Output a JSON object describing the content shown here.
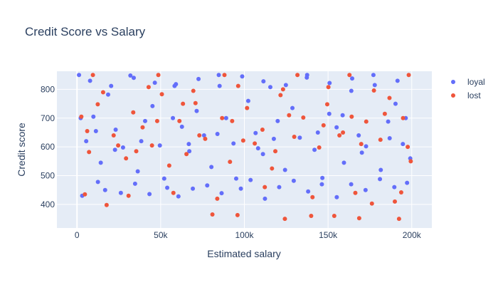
{
  "chart_data": {
    "type": "scatter",
    "title": "Credit Score vs Salary",
    "xlabel": "Estimated salary",
    "ylabel": "Credit score",
    "xlim": [
      -12000,
      212000
    ],
    "ylim": [
      318,
      863
    ],
    "xticks": [
      0,
      50000,
      100000,
      150000,
      200000
    ],
    "xtick_labels": [
      "0",
      "50k",
      "100k",
      "150k",
      "200k"
    ],
    "yticks": [
      400,
      500,
      600,
      700,
      800
    ],
    "ytick_labels": [
      "400",
      "500",
      "600",
      "700",
      "800"
    ],
    "grid": true,
    "legend_position": "top-right",
    "series": [
      {
        "name": "loyal",
        "color": "#636efa",
        "points": [
          [
            1200,
            850
          ],
          [
            5500,
            620
          ],
          [
            9800,
            705
          ],
          [
            14200,
            545
          ],
          [
            18600,
            782
          ],
          [
            23100,
            660
          ],
          [
            27500,
            598
          ],
          [
            31900,
            848
          ],
          [
            36300,
            515
          ],
          [
            40700,
            690
          ],
          [
            45100,
            742
          ],
          [
            49500,
            605
          ],
          [
            53900,
            458
          ],
          [
            58300,
            812
          ],
          [
            62700,
            670
          ],
          [
            67100,
            585
          ],
          [
            71500,
            725
          ],
          [
            75900,
            640
          ],
          [
            80300,
            530
          ],
          [
            84700,
            850
          ],
          [
            89100,
            700
          ],
          [
            93500,
            612
          ],
          [
            97900,
            455
          ],
          [
            102300,
            760
          ],
          [
            106700,
            648
          ],
          [
            111100,
            575
          ],
          [
            115500,
            808
          ],
          [
            119900,
            690
          ],
          [
            124300,
            520
          ],
          [
            128700,
            735
          ],
          [
            133100,
            632
          ],
          [
            137500,
            850
          ],
          [
            141900,
            590
          ],
          [
            146300,
            470
          ],
          [
            150700,
            715
          ],
          [
            155100,
            668
          ],
          [
            159500,
            545
          ],
          [
            163900,
            795
          ],
          [
            168300,
            640
          ],
          [
            172700,
            602
          ],
          [
            177100,
            850
          ],
          [
            181500,
            520
          ],
          [
            185900,
            688
          ],
          [
            190300,
            750
          ],
          [
            194700,
            610
          ],
          [
            199100,
            560
          ],
          [
            3100,
            430
          ],
          [
            12500,
            478
          ],
          [
            16800,
            450
          ],
          [
            26200,
            440
          ],
          [
            34700,
            472
          ],
          [
            43300,
            436
          ],
          [
            52100,
            490
          ],
          [
            60600,
            428
          ],
          [
            69200,
            455
          ],
          [
            77800,
            466
          ],
          [
            86400,
            439
          ],
          [
            95100,
            490
          ],
          [
            103700,
            485
          ],
          [
            112300,
            420
          ],
          [
            120800,
            460
          ],
          [
            129500,
            482
          ],
          [
            138100,
            445
          ],
          [
            146600,
            492
          ],
          [
            155200,
            425
          ],
          [
            163800,
            470
          ],
          [
            172400,
            450
          ],
          [
            181000,
            488
          ],
          [
            189600,
            460
          ],
          [
            197200,
            475
          ],
          [
            7800,
            830
          ],
          [
            20400,
            812
          ],
          [
            33900,
            840
          ],
          [
            46500,
            823
          ],
          [
            59100,
            818
          ],
          [
            72600,
            836
          ],
          [
            85200,
            812
          ],
          [
            98700,
            845
          ],
          [
            111400,
            828
          ],
          [
            124800,
            815
          ],
          [
            137300,
            841
          ],
          [
            150900,
            822
          ],
          [
            164400,
            838
          ],
          [
            177900,
            815
          ],
          [
            191500,
            830
          ],
          [
            2200,
            700
          ],
          [
            11300,
            655
          ],
          [
            22700,
            590
          ],
          [
            38400,
            620
          ],
          [
            57300,
            700
          ],
          [
            66800,
            610
          ],
          [
            83900,
            645
          ],
          [
            108200,
            595
          ],
          [
            117600,
            628
          ],
          [
            143900,
            650
          ],
          [
            158700,
            710
          ],
          [
            170200,
            580
          ],
          [
            186800,
            630
          ],
          [
            196400,
            700
          ]
        ]
      },
      {
        "name": "lost",
        "color": "#ef553b",
        "points": [
          [
            2600,
            705
          ],
          [
            7200,
            582
          ],
          [
            12400,
            748
          ],
          [
            17700,
            398
          ],
          [
            21900,
            640
          ],
          [
            29300,
            560
          ],
          [
            33600,
            720
          ],
          [
            39200,
            668
          ],
          [
            44800,
            605
          ],
          [
            50700,
            783
          ],
          [
            55100,
            535
          ],
          [
            61200,
            690
          ],
          [
            65400,
            575
          ],
          [
            70800,
            752
          ],
          [
            76600,
            628
          ],
          [
            80900,
            365
          ],
          [
            86700,
            700
          ],
          [
            91400,
            548
          ],
          [
            95900,
            363
          ],
          [
            101600,
            735
          ],
          [
            106200,
            612
          ],
          [
            110800,
            660
          ],
          [
            116500,
            525
          ],
          [
            121600,
            780
          ],
          [
            124200,
            350
          ],
          [
            129800,
            635
          ],
          [
            135200,
            702
          ],
          [
            139900,
            360
          ],
          [
            144700,
            598
          ],
          [
            149500,
            748
          ],
          [
            153700,
            360
          ],
          [
            158900,
            650
          ],
          [
            164100,
            705
          ],
          [
            168600,
            352
          ],
          [
            172800,
            688
          ],
          [
            176200,
            403
          ],
          [
            181300,
            625
          ],
          [
            186700,
            770
          ],
          [
            189900,
            410
          ],
          [
            192400,
            350
          ],
          [
            197600,
            600
          ],
          [
            4700,
            435
          ],
          [
            30800,
            430
          ],
          [
            57600,
            440
          ],
          [
            83800,
            420
          ],
          [
            112200,
            460
          ],
          [
            140700,
            425
          ],
          [
            166300,
            440
          ],
          [
            193700,
            442
          ],
          [
            15600,
            790
          ],
          [
            42800,
            808
          ],
          [
            69500,
            795
          ],
          [
            96300,
            812
          ],
          [
            123100,
            800
          ],
          [
            150200,
            808
          ],
          [
            177400,
            796
          ],
          [
            9500,
            850
          ],
          [
            48600,
            850
          ],
          [
            88100,
            850
          ],
          [
            131700,
            850
          ],
          [
            162800,
            850
          ],
          [
            198200,
            850
          ],
          [
            6100,
            655
          ],
          [
            24600,
            605
          ],
          [
            47900,
            690
          ],
          [
            73100,
            640
          ],
          [
            99300,
            622
          ],
          [
            126700,
            710
          ],
          [
            156800,
            640
          ],
          [
            183900,
            715
          ],
          [
            199400,
            550
          ],
          [
            35400,
            585
          ],
          [
            63300,
            750
          ],
          [
            92700,
            690
          ],
          [
            118500,
            585
          ],
          [
            147300,
            675
          ],
          [
            169800,
            610
          ],
          [
            194800,
            700
          ]
        ]
      }
    ]
  }
}
